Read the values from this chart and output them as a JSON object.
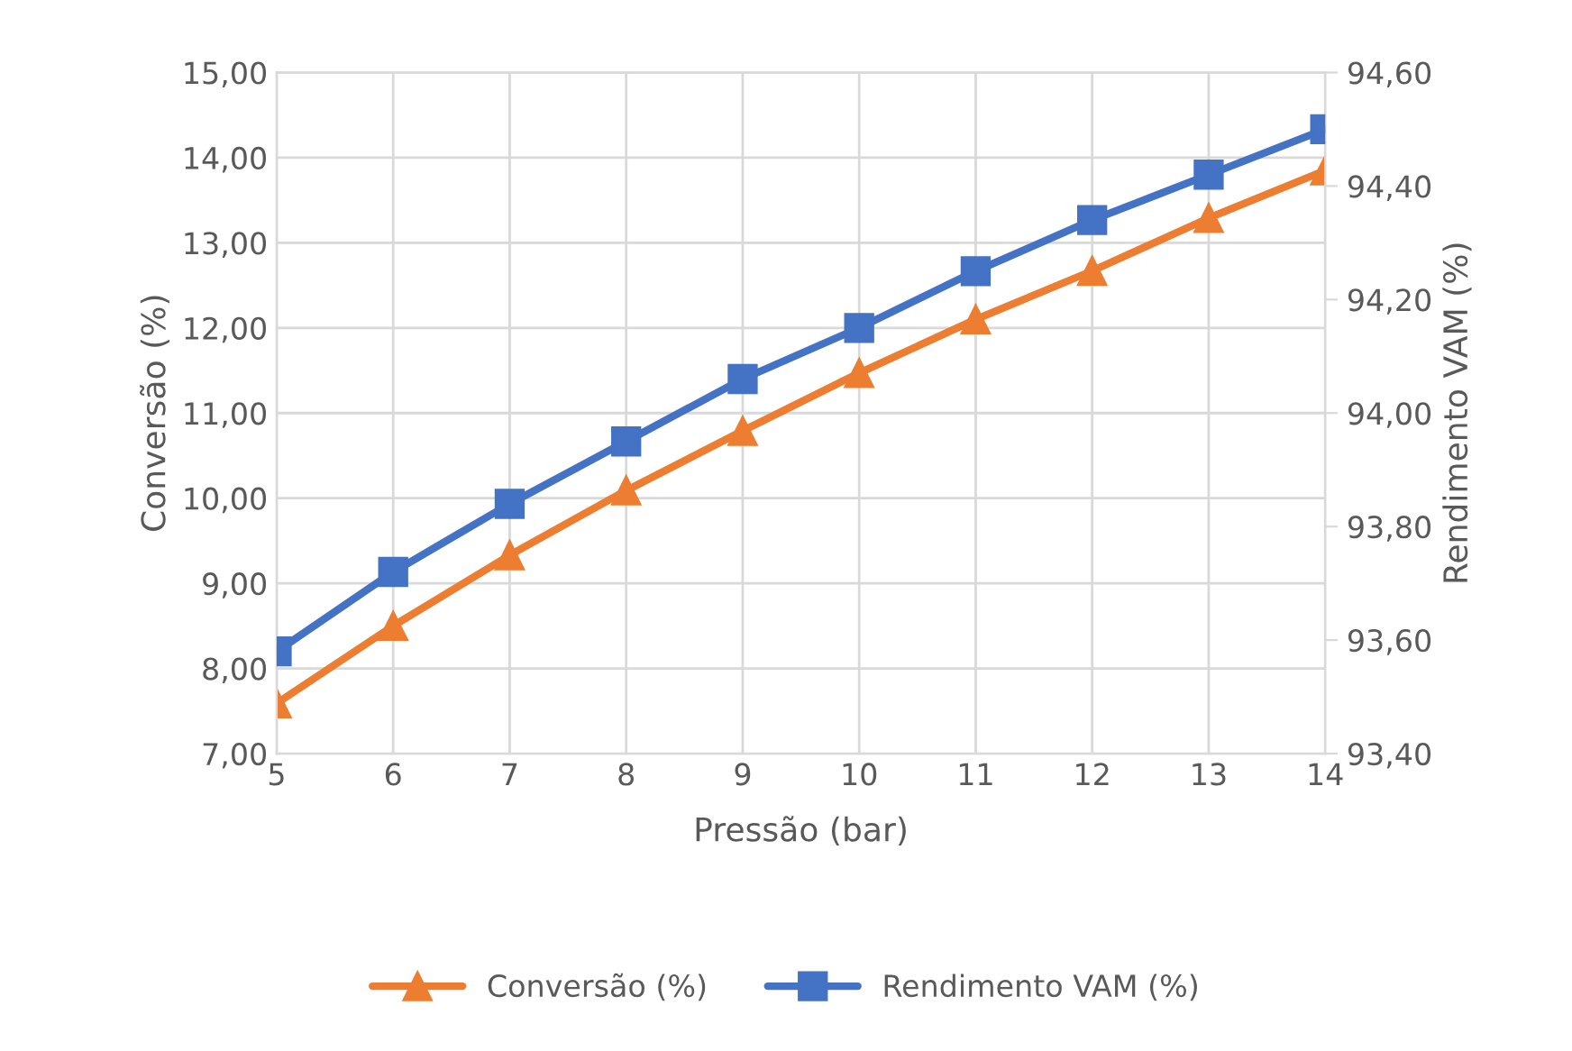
{
  "chart_data": {
    "type": "line",
    "xlabel": "Pressão (bar)",
    "ylabel": "Conversão (%)",
    "y2label": "Rendimento VAM (%)",
    "x": [
      5,
      6,
      7,
      8,
      9,
      10,
      11,
      12,
      13,
      14
    ],
    "series": [
      {
        "name": "Conversão (%)",
        "color": "#ed7d31",
        "marker": "triangle",
        "values": [
          7.59,
          8.5,
          9.33,
          10.09,
          10.79,
          11.47,
          12.1,
          12.67,
          13.29,
          13.85
        ]
      },
      {
        "name": "Rendimento VAM (%)",
        "color": "#4472c4",
        "marker": "square",
        "axis": "y2",
        "values": [
          93.58,
          93.72,
          93.84,
          93.95,
          94.06,
          94.15,
          94.25,
          94.34,
          94.42,
          94.5
        ]
      }
    ],
    "xlim": [
      5,
      14
    ],
    "xticks": [
      5,
      6,
      7,
      8,
      9,
      10,
      11,
      12,
      13,
      14
    ],
    "ylim": [
      7,
      15
    ],
    "yticks": [
      {
        "value": 7,
        "label": "7,00"
      },
      {
        "value": 8,
        "label": "8,00"
      },
      {
        "value": 9,
        "label": "9,00"
      },
      {
        "value": 10,
        "label": "10,00"
      },
      {
        "value": 11,
        "label": "11,00"
      },
      {
        "value": 12,
        "label": "12,00"
      },
      {
        "value": 13,
        "label": "13,00"
      },
      {
        "value": 14,
        "label": "14,00"
      },
      {
        "value": 15,
        "label": "15,00"
      }
    ],
    "y2lim": [
      93.4,
      94.6
    ],
    "y2ticks": [
      {
        "value": 93.4,
        "label": "93,40"
      },
      {
        "value": 93.6,
        "label": "93,60"
      },
      {
        "value": 93.8,
        "label": "93,80"
      },
      {
        "value": 94.0,
        "label": "94,00"
      },
      {
        "value": 94.2,
        "label": "94,20"
      },
      {
        "value": 94.4,
        "label": "94,40"
      },
      {
        "value": 94.6,
        "label": "94,60"
      }
    ],
    "grid": true,
    "legend": "bottom",
    "line_style": "solid"
  }
}
